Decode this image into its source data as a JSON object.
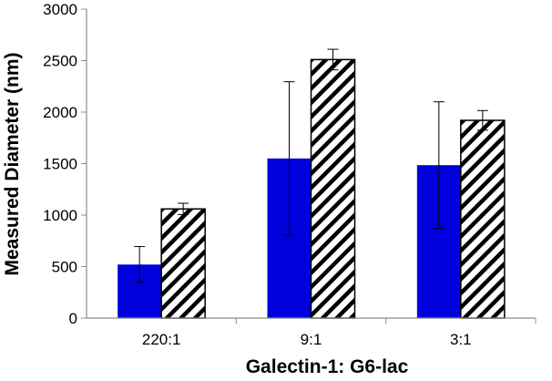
{
  "colors": {
    "series1": "#0000dd",
    "series2_hatch": "#000000",
    "series2_bg": "#ffffff",
    "axis": "#8c8c8c"
  },
  "chart_data": {
    "type": "bar",
    "title": "",
    "xlabel": "Galectin-1: G6-lac",
    "ylabel": "Measured Diameter (nm)",
    "categories": [
      "220:1",
      "9:1",
      "3:1"
    ],
    "ylim": [
      0,
      3000
    ],
    "yticks": [
      0,
      500,
      1000,
      1500,
      2000,
      2500,
      3000
    ],
    "grid": false,
    "legend": "none",
    "series": [
      {
        "name": "series-1-solid",
        "pattern": "solid",
        "values": [
          520,
          1550,
          1485
        ],
        "errors": [
          175,
          745,
          615
        ]
      },
      {
        "name": "series-2-hatched",
        "pattern": "diagonal-hatch",
        "values": [
          1060,
          2510,
          1920
        ],
        "errors": [
          55,
          100,
          95
        ]
      }
    ]
  }
}
